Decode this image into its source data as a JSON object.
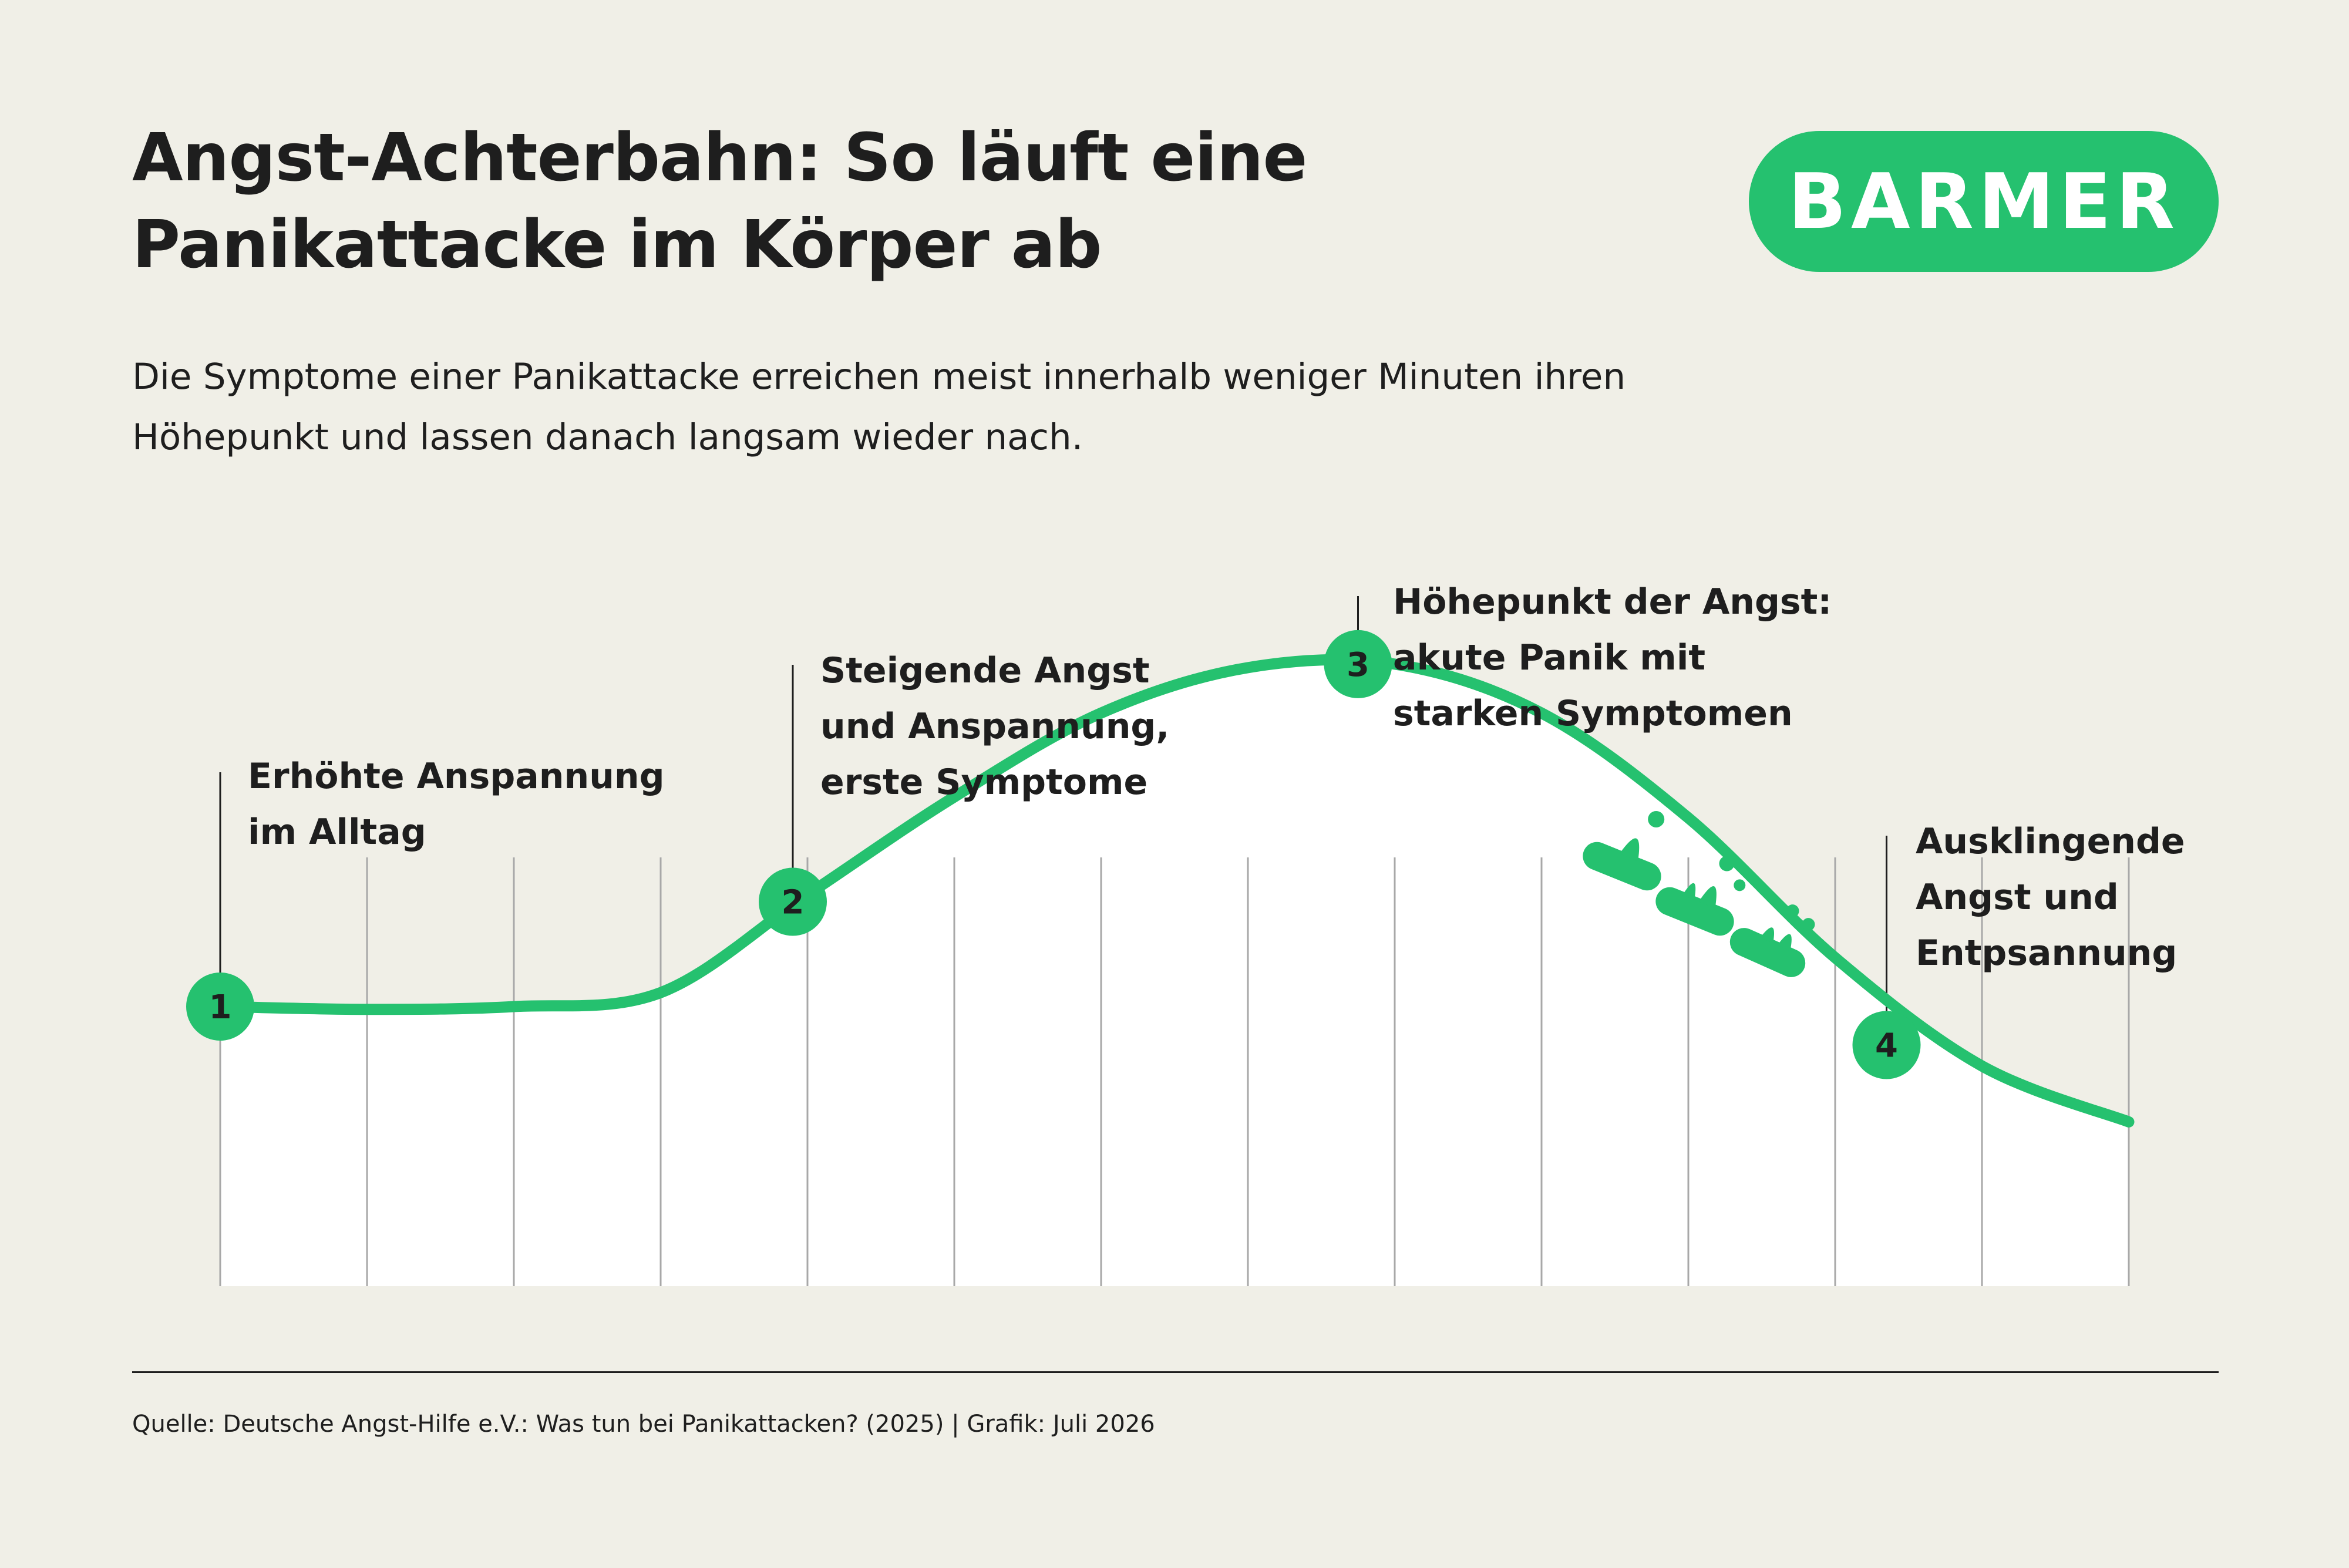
{
  "header": {
    "title_lines": [
      "Angst-Achterbahn: So läuft eine",
      "Panikattacke im Körper ab"
    ],
    "subtitle_lines": [
      "Die Symptome einer Panikattacke erreichen meist innerhalb weniger Minuten ihren",
      "Höhepunkt und lassen danach langsam wieder nach."
    ]
  },
  "logo": {
    "text": "BARMER",
    "color": "#25c16f"
  },
  "chart_data": {
    "type": "area",
    "x": [
      0,
      1,
      2,
      3,
      4,
      5,
      6,
      7,
      8,
      9,
      10,
      11,
      12,
      13
    ],
    "y": [
      4.0,
      3.96,
      4.0,
      4.2,
      5.6,
      7.0,
      8.2,
      8.85,
      8.9,
      8.2,
      6.7,
      4.7,
      3.15,
      2.35
    ],
    "ylim": [
      0,
      10
    ],
    "grid": true,
    "line_color": "#25c16f",
    "fill_color": "#ffffff",
    "markers": [
      {
        "number": "1",
        "x": 0.0,
        "y": 4.0,
        "label_lines": [
          "Erhöhte Anspannung",
          "im Alltag"
        ]
      },
      {
        "number": "2",
        "x": 3.9,
        "y": 5.5,
        "label_lines": [
          "Steigende Angst",
          "und Anspannung,",
          "erste Symptome"
        ]
      },
      {
        "number": "3",
        "x": 7.75,
        "y": 8.9,
        "label_lines": [
          "Höhepunkt der Angst:",
          "akute Panik mit",
          "starken Symptomen"
        ]
      },
      {
        "number": "4",
        "x": 11.35,
        "y": 3.45,
        "label_lines": [
          "Ausklingende",
          "Angst und",
          "Entpsannung"
        ]
      }
    ],
    "decoration": "rollercoaster-cars-icon"
  },
  "footer": {
    "source": "Quelle: Deutsche Angst-Hilfe e.V.: Was tun bei Panikattacken? (2025) | Grafik: Juli 2026"
  }
}
